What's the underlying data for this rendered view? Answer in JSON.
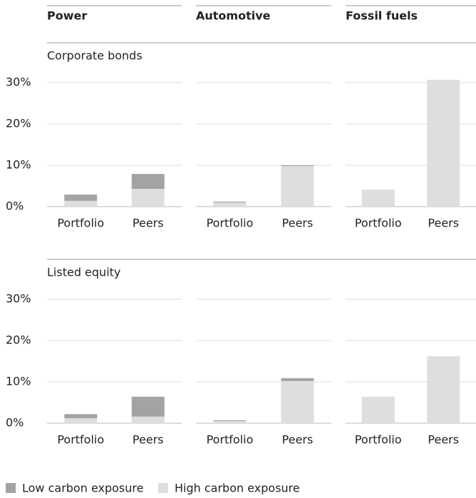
{
  "chart_data": {
    "type": "bar",
    "stacked": true,
    "columns": [
      "Power",
      "Automotive",
      "Fossil fuels"
    ],
    "rows": [
      "Corporate bonds",
      "Listed equity"
    ],
    "categories": [
      "Portfolio",
      "Peers"
    ],
    "ylim": [
      0,
      30
    ],
    "yticks": [
      {
        "value": 0,
        "label": "0%"
      },
      {
        "value": 10,
        "label": "10%"
      },
      {
        "value": 20,
        "label": "20%"
      },
      {
        "value": 30,
        "label": "30%"
      }
    ],
    "grid": true,
    "series": [
      {
        "name": "Low carbon exposure",
        "color": "#a3a3a3",
        "values": [
          [
            [
              1.5,
              3.6
            ],
            [
              0.2,
              0.2
            ],
            [
              0,
              0
            ]
          ],
          [
            [
              1.0,
              4.8
            ],
            [
              0.2,
              0.7
            ],
            [
              0,
              0
            ]
          ]
        ]
      },
      {
        "name": "High carbon exposure",
        "color": "#dedede",
        "values": [
          [
            [
              1.4,
              4.3
            ],
            [
              1.0,
              9.8
            ],
            [
              4.1,
              30.7
            ]
          ],
          [
            [
              1.2,
              1.6
            ],
            [
              0.5,
              10.2
            ],
            [
              6.4,
              16.2
            ]
          ]
        ]
      }
    ]
  }
}
